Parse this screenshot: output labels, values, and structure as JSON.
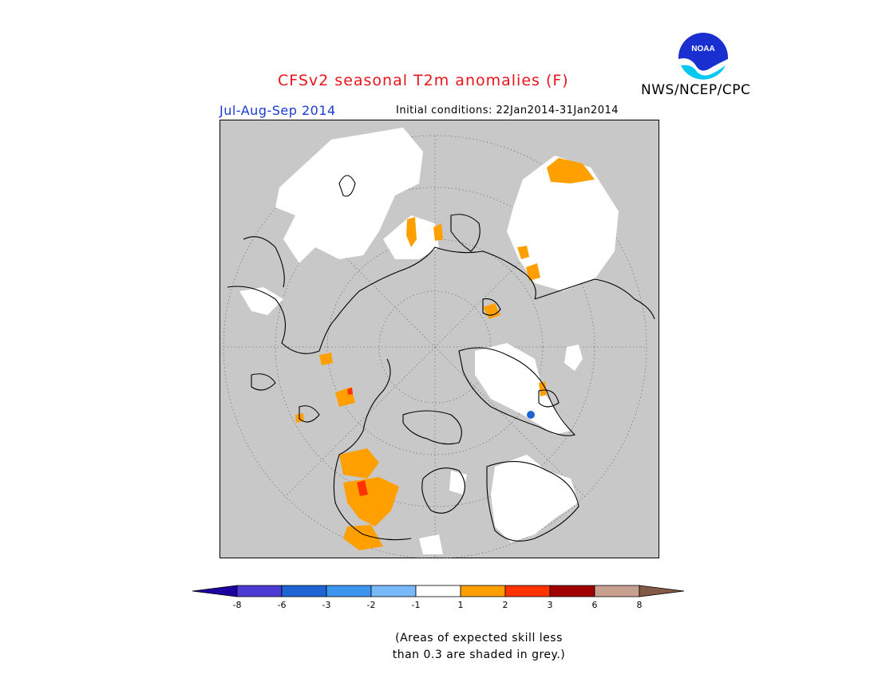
{
  "header": {
    "title": "CFSv2 seasonal T2m anomalies (F)",
    "season": "Jul-Aug-Sep 2014",
    "initial_conditions": "Initial conditions: 22Jan2014-31Jan2014",
    "organization": "NWS/NCEP/CPC",
    "logo_text": "NOAA"
  },
  "colors": {
    "title": "#e8141a",
    "season": "#1a3ad6",
    "skill_grey": "#c8c8c8",
    "land_outline": "#000000"
  },
  "legend": {
    "ticks": [
      "-8",
      "-6",
      "-3",
      "-2",
      "-1",
      "1",
      "2",
      "3",
      "6",
      "8"
    ],
    "colors": [
      "#1e00a0",
      "#4b3bd2",
      "#1e64d2",
      "#3c96f0",
      "#78b9fa",
      "#ffffff",
      "#ffa000",
      "#ff3200",
      "#a00000",
      "#c8a090",
      "#825a46"
    ]
  },
  "note": "(Areas of expected skill less\nthan 0.3 are shaded in grey.)"
}
